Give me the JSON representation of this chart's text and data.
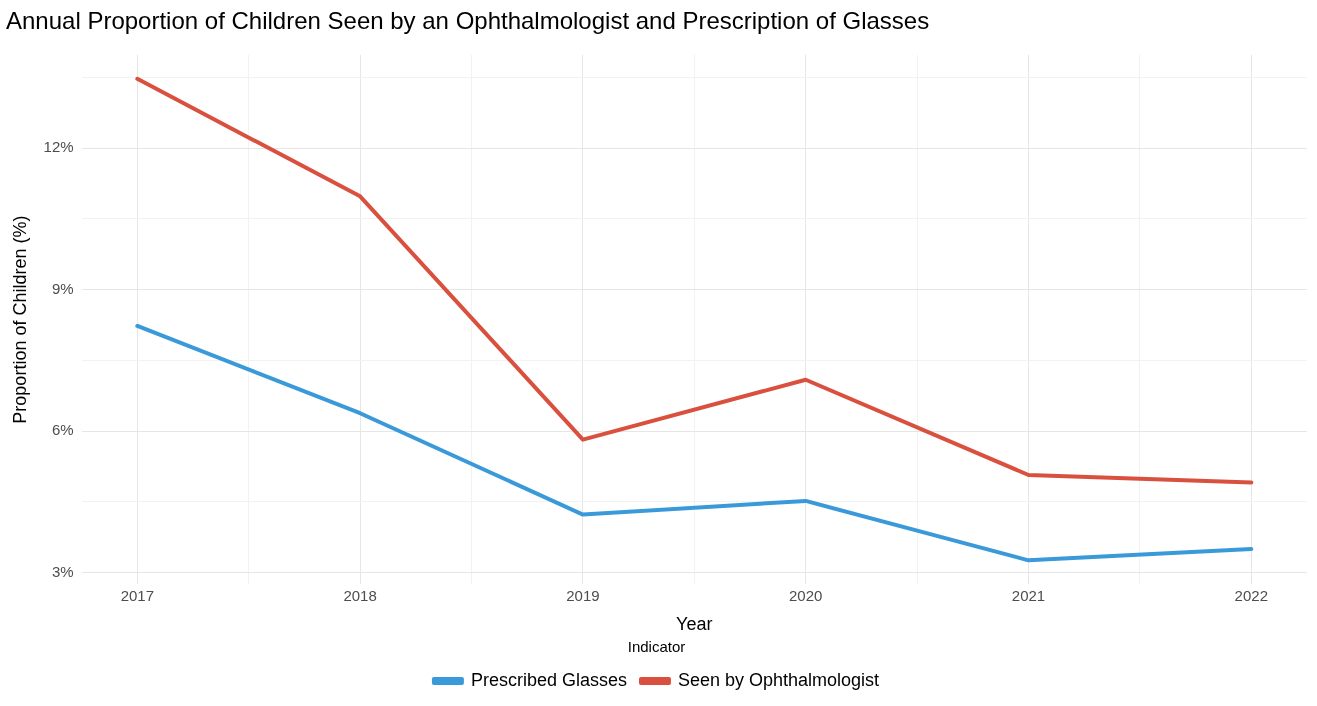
{
  "chart_data": {
    "type": "line",
    "title": "Annual Proportion of Children Seen by an Ophthalmologist and Prescription of Glasses",
    "xlabel": "Year",
    "ylabel": "Proportion of Children (%)",
    "legend_title": "Indicator",
    "x": [
      2017,
      2018,
      2019,
      2020,
      2021,
      2022
    ],
    "series": [
      {
        "name": "Prescribed Glasses",
        "color": "#3a9ad9",
        "values": [
          8.23,
          6.38,
          4.23,
          4.52,
          3.26,
          3.5
        ]
      },
      {
        "name": "Seen by Ophthalmologist",
        "color": "#d9503f",
        "values": [
          13.47,
          10.98,
          5.82,
          7.09,
          5.07,
          4.91
        ]
      }
    ],
    "xlim": [
      2016.75,
      2022.25
    ],
    "xticks": [
      2017,
      {
        "value": 2017.5,
        "label": null
      },
      2018,
      {
        "value": 2018.5,
        "label": null
      },
      2019,
      {
        "value": 2019.5,
        "label": null
      },
      2020,
      {
        "value": 2020.5,
        "label": null
      },
      2021,
      {
        "value": 2021.5,
        "label": null
      },
      2022
    ],
    "ylim": [
      2.75,
      13.98
    ],
    "yticks": [
      {
        "value": 3,
        "label": "3%"
      },
      {
        "value": 4.5,
        "label": null
      },
      {
        "value": 6,
        "label": "6%"
      },
      {
        "value": 7.5,
        "label": null
      },
      {
        "value": 9,
        "label": "9%"
      },
      {
        "value": 10.5,
        "label": null
      },
      {
        "value": 12,
        "label": "12%"
      },
      {
        "value": 13.5,
        "label": null
      }
    ],
    "grid": true,
    "legend": "bottom",
    "marker": "none",
    "line_style": "solid"
  }
}
